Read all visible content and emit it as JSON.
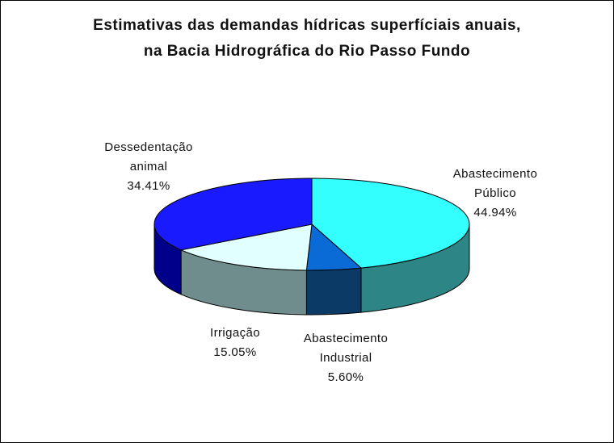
{
  "chart_data": {
    "type": "pie",
    "title": "Estimativas das demandas hídricas superfíciais anuais,",
    "subtitle": "na Bacia Hidrográfica do Rio Passo Fundo",
    "categories": [
      "Abastecimento Público",
      "Abastecimento Industrial",
      "Irrigação",
      "Dessedentação animal"
    ],
    "values": [
      44.94,
      5.6,
      15.05,
      34.41
    ],
    "value_labels": [
      "44.94%",
      "5.60%",
      "15.05%",
      "34.41%"
    ],
    "colors": [
      "#33ffff",
      "#0a6ad6",
      "#e2ffff",
      "#1a1aff"
    ],
    "side_colors": [
      "#2e8585",
      "#0b3a66",
      "#6f8d8d",
      "#00008a"
    ]
  }
}
